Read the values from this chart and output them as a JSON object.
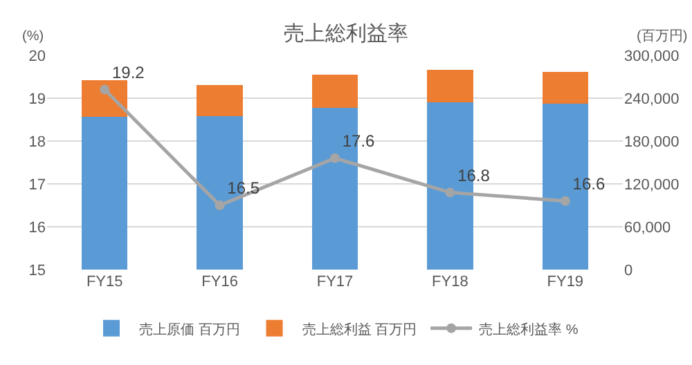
{
  "chart_data": {
    "type": "bar",
    "title": "売上総利益率",
    "ylabel": "(%)",
    "y2label": "(百万円)",
    "categories": [
      "FY15",
      "FY16",
      "FY17",
      "FY18",
      "FY19"
    ],
    "stacked": true,
    "series": [
      {
        "name": "売上原価 百万円",
        "color": "#5b9bd5",
        "axis": "y2",
        "values": [
          214000,
          215000,
          226000,
          234000,
          232000
        ]
      },
      {
        "name": "売上総利益 百万円",
        "color": "#ed7d31",
        "axis": "y2",
        "values": [
          51000,
          43000,
          47000,
          46000,
          45000
        ]
      },
      {
        "name": "売上総利益率 %",
        "type": "line",
        "color": "#a5a5a5",
        "marker": "circle",
        "values": [
          19.2,
          16.5,
          17.6,
          16.8,
          16.6
        ],
        "value_labels": [
          "19.2",
          "16.5",
          "17.6",
          "16.8",
          "16.6"
        ]
      }
    ],
    "ylim": [
      15,
      20
    ],
    "yticks": [
      15,
      16,
      17,
      18,
      19,
      20
    ],
    "y2lim": [
      0,
      300000
    ],
    "y2ticks": [
      {
        "value": 0,
        "label": "0"
      },
      {
        "value": 60000,
        "label": "60,000"
      },
      {
        "value": 120000,
        "label": "120,000"
      },
      {
        "value": 180000,
        "label": "180,000"
      },
      {
        "value": 240000,
        "label": "240,000"
      },
      {
        "value": 300000,
        "label": "300,000"
      }
    ],
    "grid": "y",
    "legend": "bottom"
  }
}
